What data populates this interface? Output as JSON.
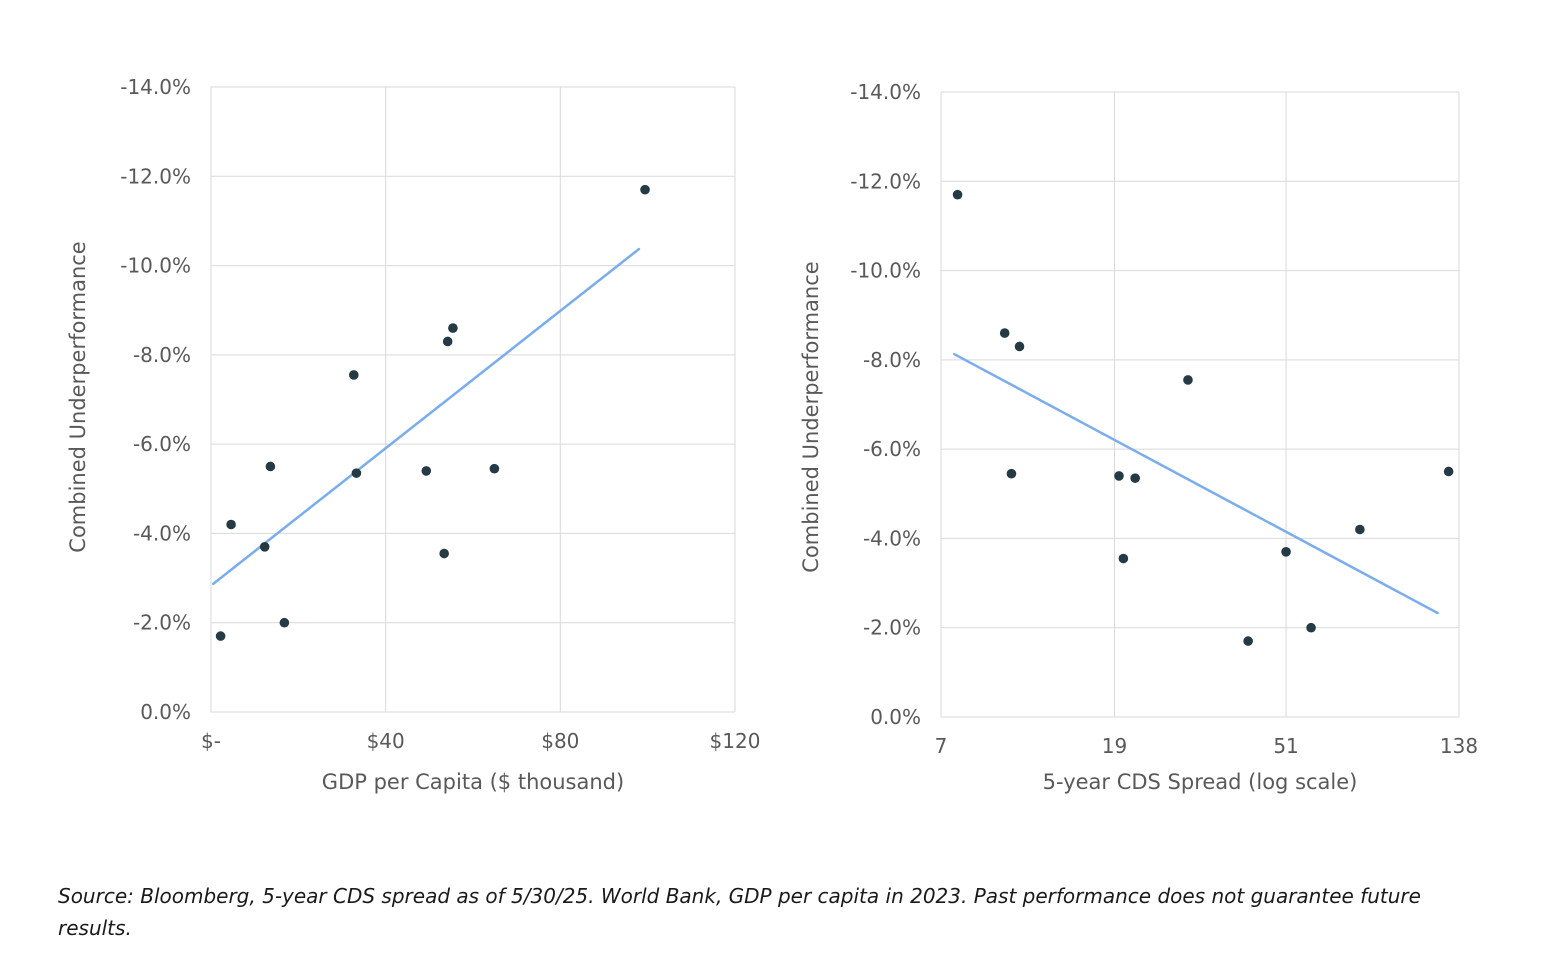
{
  "colors": {
    "point": "#263a45",
    "trend": "#7aaded",
    "grid": "#d9d9d9",
    "label": "#595959"
  },
  "footnote": "Source: Bloomberg, 5-year CDS spread as of 5/30/25. World Bank, GDP per capita in 2023. Past performance does not guarantee future results.",
  "chart_data": [
    {
      "type": "scatter",
      "title": "",
      "xlabel": "GDP per Capita ($ thousand)",
      "ylabel": "Combined Underperformance",
      "xlim": [
        0,
        120
      ],
      "ylim": [
        0,
        -14
      ],
      "y_axis_reversed": true,
      "grid": true,
      "x_ticks": [
        0,
        40,
        80,
        120
      ],
      "x_tick_labels": [
        "$-",
        "$40",
        "$80",
        "$120"
      ],
      "y_ticks": [
        0,
        -2,
        -4,
        -6,
        -8,
        -10,
        -12,
        -14
      ],
      "y_tick_labels": [
        "0.0%",
        "-2.0%",
        "-4.0%",
        "-6.0%",
        "-8.0%",
        "-10.0%",
        "-12.0%",
        "-14.0%"
      ],
      "points": [
        {
          "x": 2.2,
          "y": -1.7
        },
        {
          "x": 4.6,
          "y": -4.2
        },
        {
          "x": 12.3,
          "y": -3.7
        },
        {
          "x": 13.6,
          "y": -5.5
        },
        {
          "x": 16.8,
          "y": -2.0
        },
        {
          "x": 32.7,
          "y": -7.55
        },
        {
          "x": 33.3,
          "y": -5.35
        },
        {
          "x": 49.3,
          "y": -5.4
        },
        {
          "x": 53.4,
          "y": -3.55
        },
        {
          "x": 54.2,
          "y": -8.3
        },
        {
          "x": 55.4,
          "y": -8.6
        },
        {
          "x": 64.9,
          "y": -5.45
        },
        {
          "x": 99.4,
          "y": -11.7
        }
      ],
      "trendline": {
        "x": [
          0.5,
          98.0
        ],
        "y": [
          -2.87,
          -10.37
        ]
      }
    },
    {
      "type": "scatter",
      "title": "",
      "xlabel": "5-year CDS Spread (log scale)",
      "ylabel": "Combined Underperformance",
      "x_scale": "log",
      "xlim": [
        7,
        138
      ],
      "ylim": [
        0,
        -14
      ],
      "y_axis_reversed": true,
      "grid": true,
      "x_ticks": [
        7,
        19,
        51,
        138
      ],
      "x_tick_labels": [
        "7",
        "19",
        "51",
        "138"
      ],
      "y_ticks": [
        0,
        -2,
        -4,
        -6,
        -8,
        -10,
        -12,
        -14
      ],
      "y_tick_labels": [
        "0.0%",
        "-2.0%",
        "-4.0%",
        "-6.0%",
        "-8.0%",
        "-10.0%",
        "-12.0%",
        "-14.0%"
      ],
      "points": [
        {
          "x": 7.7,
          "y": -11.7
        },
        {
          "x": 10.1,
          "y": -8.6
        },
        {
          "x": 10.5,
          "y": -5.45
        },
        {
          "x": 11.0,
          "y": -8.3
        },
        {
          "x": 19.5,
          "y": -5.4
        },
        {
          "x": 20.0,
          "y": -3.55
        },
        {
          "x": 21.4,
          "y": -5.35
        },
        {
          "x": 29.0,
          "y": -7.55
        },
        {
          "x": 41.0,
          "y": -1.7
        },
        {
          "x": 51.0,
          "y": -3.7
        },
        {
          "x": 58.9,
          "y": -2.0
        },
        {
          "x": 78.0,
          "y": -4.2
        },
        {
          "x": 130.0,
          "y": -5.5
        }
      ],
      "trendline": {
        "x": [
          7.55,
          122.0
        ],
        "y": [
          -8.13,
          -2.33
        ]
      }
    }
  ]
}
